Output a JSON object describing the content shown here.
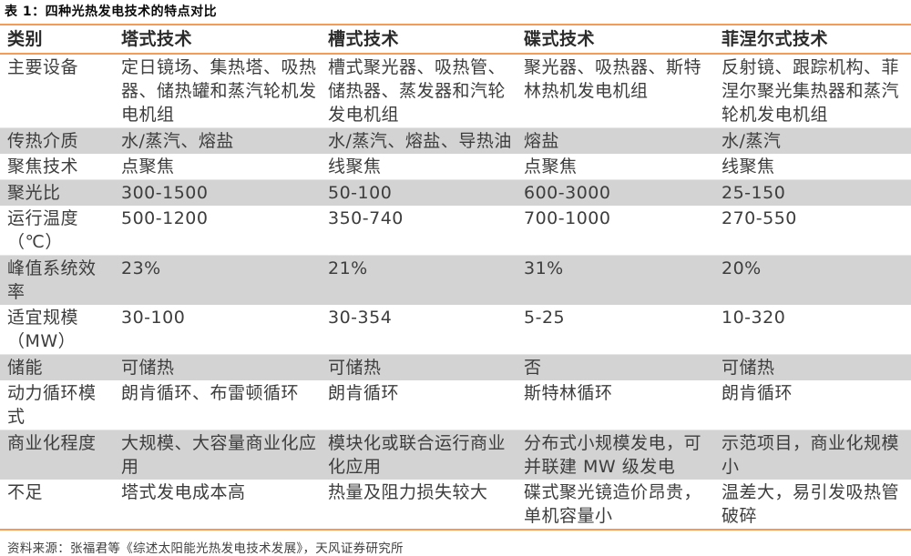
{
  "page": {
    "title": "表 1：四种光热发电技术的特点对比",
    "source": "资料来源：张福君等《综述太阳能光热发电技术发展》，天风证券研究所"
  },
  "table": {
    "columns": [
      "类别",
      "塔式技术",
      "槽式技术",
      "碟式技术",
      "菲涅尔式技术"
    ],
    "rows": [
      {
        "label": "主要设备",
        "cells": [
          "定日镜场、集热塔、吸热器、储热罐和蒸汽轮机发电机组",
          "槽式聚光器、吸热管、储热器、蒸发器和汽轮发电机组",
          "聚光器、吸热器、斯特林热机发电机组",
          "反射镜、跟踪机构、菲涅尔聚光集热器和蒸汽轮机发电机组"
        ],
        "shaded": false
      },
      {
        "label": "传热介质",
        "cells": [
          "水/蒸汽、熔盐",
          "水/蒸汽、熔盐、导热油",
          "熔盐",
          "水/蒸汽"
        ],
        "shaded": true
      },
      {
        "label": "聚焦技术",
        "cells": [
          "点聚焦",
          "线聚焦",
          "点聚焦",
          "线聚焦"
        ],
        "shaded": false
      },
      {
        "label": "聚光比",
        "cells": [
          "300-1500",
          "50-100",
          "600-3000",
          "25-150"
        ],
        "shaded": true
      },
      {
        "label": "运行温度\n（℃）",
        "cells": [
          "500-1200",
          "350-740",
          "700-1000",
          "270-550"
        ],
        "shaded": false
      },
      {
        "label": "峰值系统效率",
        "cells": [
          "23%",
          "21%",
          "31%",
          "20%"
        ],
        "shaded": true
      },
      {
        "label": "适宜规模\n（MW）",
        "cells": [
          "30-100",
          "30-354",
          "5-25",
          "10-320"
        ],
        "shaded": false
      },
      {
        "label": "储能",
        "cells": [
          "可储热",
          "可储热",
          "否",
          "可储热"
        ],
        "shaded": true
      },
      {
        "label": "动力循环模式",
        "cells": [
          "朗肯循环、布雷顿循环",
          "朗肯循环",
          "斯特林循环",
          "朗肯循环"
        ],
        "shaded": false
      },
      {
        "label": "商业化程度",
        "cells": [
          "大规模、大容量商业化应用",
          "模块化或联合运行商业化应用",
          "分布式小规模发电，可并联建 MW 级发电",
          "示范项目，商业化规模小"
        ],
        "shaded": true
      },
      {
        "label": "不足",
        "cells": [
          "塔式发电成本高",
          "热量及阻力损失较大",
          "碟式聚光镜造价昂贵，单机容量小",
          "温差大，易引发吸热管破碎"
        ],
        "shaded": false
      }
    ]
  },
  "colors": {
    "accent_orange": "#f49b57",
    "row_shade": "#d3d3d3",
    "body_text": "#3d3d3d"
  }
}
